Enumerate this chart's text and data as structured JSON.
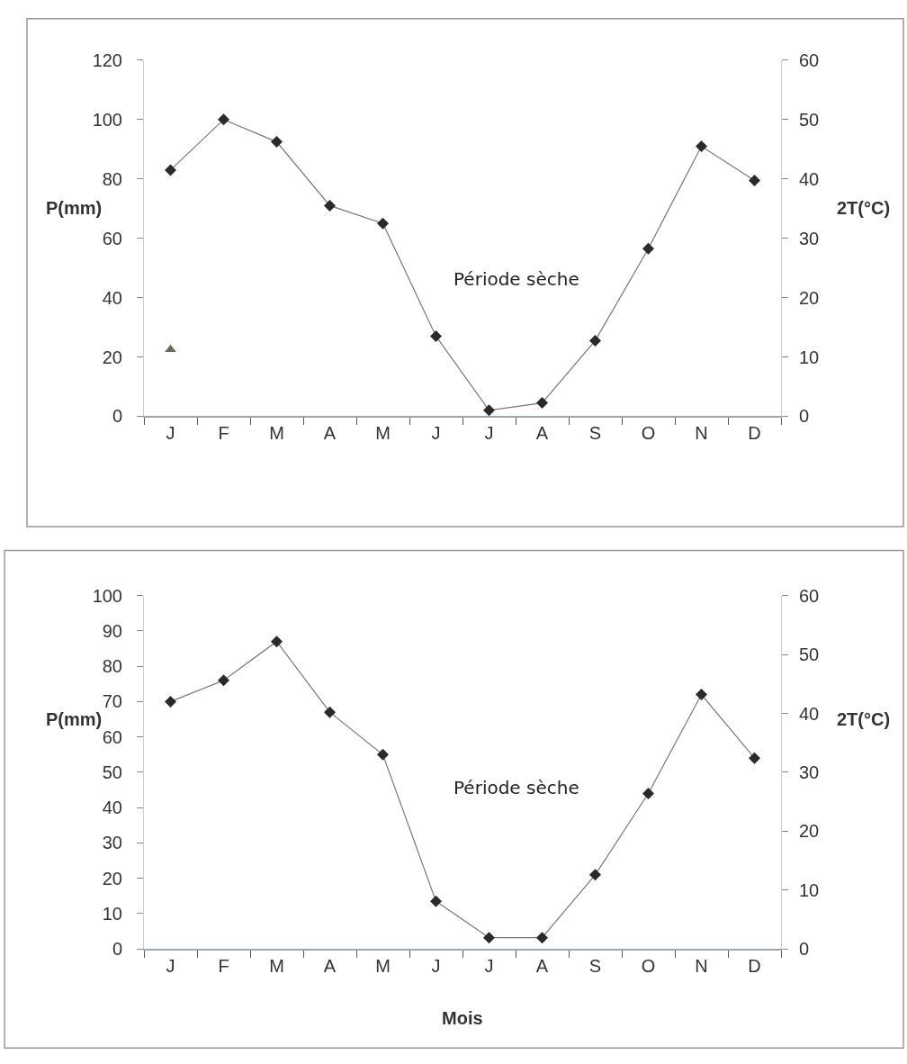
{
  "chart_data": [
    {
      "type": "line",
      "categories": [
        "J",
        "F",
        "M",
        "A",
        "M",
        "J",
        "J",
        "A",
        "S",
        "O",
        "N",
        "D"
      ],
      "series": [
        {
          "color": "#2a2a2a",
          "values": [
            83,
            100,
            92.5,
            71,
            65,
            27,
            2,
            4.5,
            25.5,
            56.5,
            91,
            79.5
          ]
        },
        {
          "type": "scatter",
          "marker": "triangle",
          "color": "#6b6b50",
          "values": [
            22.5,
            null,
            null,
            null,
            null,
            null,
            null,
            null,
            null,
            null,
            null,
            null
          ]
        }
      ],
      "marker": "diamond",
      "line_style": "solid",
      "legend": false,
      "ylabel": "P(mm)",
      "y2label": "2T(°C)",
      "ylim": [
        0,
        120
      ],
      "yticks": [
        0,
        20,
        40,
        60,
        80,
        100,
        120
      ],
      "y2lim": [
        0,
        60
      ],
      "y2ticks": [
        0,
        10,
        20,
        30,
        40,
        50,
        60
      ],
      "annotations": [
        "Période sèche"
      ]
    },
    {
      "type": "line",
      "categories": [
        "J",
        "F",
        "M",
        "A",
        "M",
        "J",
        "J",
        "A",
        "S",
        "O",
        "N",
        "D"
      ],
      "series": [
        {
          "color": "#2a2a2a",
          "values": [
            70,
            76,
            87,
            67,
            55,
            13.5,
            3.2,
            3.2,
            21,
            44,
            72,
            54
          ]
        }
      ],
      "marker": "diamond",
      "line_style": "solid",
      "legend": false,
      "xlabel": "Mois",
      "ylabel": "P(mm)",
      "y2label": "2T(°C)",
      "ylim": [
        0,
        100
      ],
      "yticks": [
        0,
        10,
        20,
        30,
        40,
        50,
        60,
        70,
        80,
        90,
        100
      ],
      "y2lim": [
        0,
        60
      ],
      "y2ticks": [
        0,
        10,
        20,
        30,
        40,
        50,
        60
      ],
      "annotations": [
        "Période sèche"
      ]
    }
  ]
}
